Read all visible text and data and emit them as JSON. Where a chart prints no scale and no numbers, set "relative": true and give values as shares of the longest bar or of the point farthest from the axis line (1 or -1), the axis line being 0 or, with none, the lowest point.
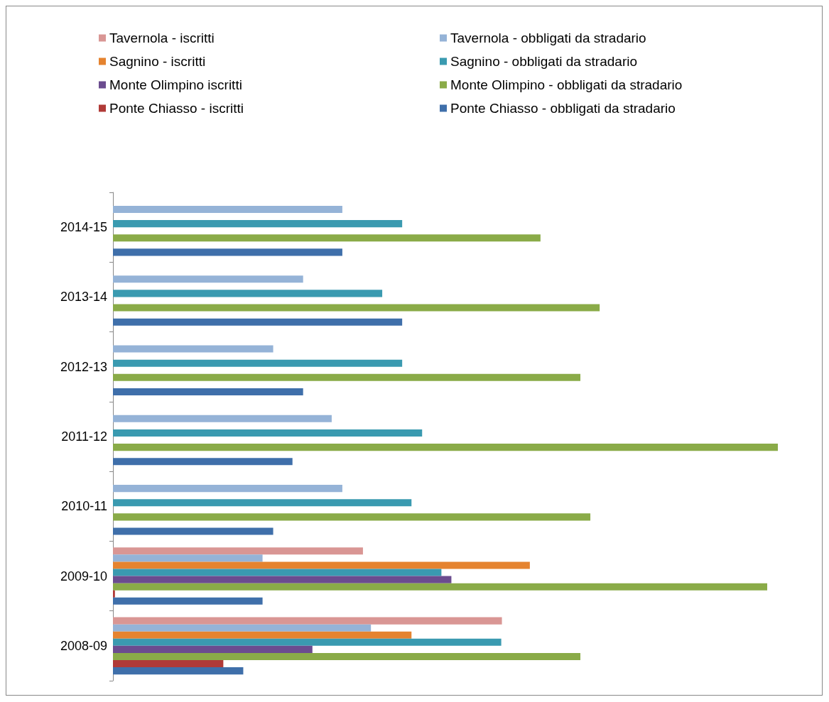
{
  "chart_data": {
    "type": "bar",
    "orientation": "horizontal",
    "relative": true,
    "legend": "top",
    "grid": false,
    "categories": [
      "2014-15",
      "2013-14",
      "2012-13",
      "2011-12",
      "2010-11",
      "2009-10",
      "2008-09"
    ],
    "series": [
      {
        "name": "Tavernola - iscritti",
        "color": "#d99694",
        "values": [
          null,
          null,
          null,
          null,
          null,
          0.376,
          0.585
        ]
      },
      {
        "name": "Tavernola - obbligati da stradario",
        "color": "#95b3d7",
        "values": [
          0.345,
          0.286,
          0.241,
          0.329,
          0.345,
          0.225,
          0.388
        ]
      },
      {
        "name": "Sagnino - iscritti",
        "color": "#e5832f",
        "values": [
          null,
          null,
          null,
          null,
          null,
          0.627,
          0.449
        ]
      },
      {
        "name": "Sagnino - obbligati da stradario",
        "color": "#3a9ab0",
        "values": [
          0.435,
          0.405,
          0.435,
          0.465,
          0.449,
          0.494,
          0.584
        ]
      },
      {
        "name": "Monte Olimpino iscritti",
        "color": "#6b4c8f",
        "values": [
          null,
          null,
          null,
          null,
          null,
          0.509,
          0.3
        ]
      },
      {
        "name": "Monte Olimpino - obbligati da stradario",
        "color": "#8aab48",
        "values": [
          0.643,
          0.732,
          0.703,
          1,
          0.718,
          0.984,
          0.703
        ]
      },
      {
        "name": "Ponte Chiasso - iscritti",
        "color": "#b03a37",
        "values": [
          null,
          null,
          null,
          null,
          null,
          0.003,
          0.166
        ]
      },
      {
        "name": "Ponte Chiasso - obbligati da stradario",
        "color": "#3f6faa",
        "values": [
          0.345,
          0.435,
          0.286,
          0.27,
          0.241,
          0.225,
          0.196
        ]
      }
    ]
  }
}
